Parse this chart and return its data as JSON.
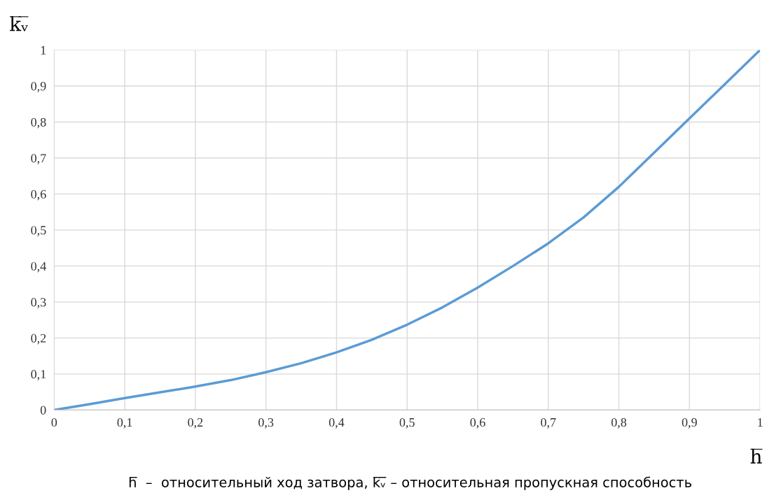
{
  "chart_data": {
    "type": "line",
    "ylabel": "k̅ᵥ̅",
    "xlabel": "h̅",
    "annotations": [
      "h̅  –  относительный ход затвора, k̅ᵥ̅ – относительная пропускная способность"
    ],
    "x": [
      0,
      0.05,
      0.1,
      0.15,
      0.2,
      0.25,
      0.3,
      0.35,
      0.4,
      0.45,
      0.5,
      0.55,
      0.6,
      0.65,
      0.7,
      0.75,
      0.8,
      0.85,
      0.9,
      0.95,
      1
    ],
    "series": [
      {
        "color": "#5b9bd5",
        "values": [
          0,
          0.016,
          0.033,
          0.049,
          0.065,
          0.083,
          0.105,
          0.13,
          0.16,
          0.195,
          0.237,
          0.285,
          0.34,
          0.4,
          0.463,
          0.535,
          0.62,
          0.715,
          0.81,
          0.905,
          1
        ]
      }
    ],
    "xlim": [
      0,
      1
    ],
    "ylim": [
      0,
      1
    ],
    "xticks": [
      0,
      {
        "value": 0.1,
        "label": "0,1"
      },
      {
        "value": 0.2,
        "label": "0,2"
      },
      {
        "value": 0.3,
        "label": "0,3"
      },
      {
        "value": 0.4,
        "label": "0,4"
      },
      {
        "value": 0.5,
        "label": "0,5"
      },
      {
        "value": 0.6,
        "label": "0,6"
      },
      {
        "value": 0.7,
        "label": "0,7"
      },
      {
        "value": 0.8,
        "label": "0,8"
      },
      {
        "value": 0.9,
        "label": "0,9"
      },
      1
    ],
    "yticks": [
      0,
      {
        "value": 0.1,
        "label": "0,1"
      },
      {
        "value": 0.2,
        "label": "0,2"
      },
      {
        "value": 0.3,
        "label": "0,3"
      },
      {
        "value": 0.4,
        "label": "0,4"
      },
      {
        "value": 0.5,
        "label": "0,5"
      },
      {
        "value": 0.6,
        "label": "0,6"
      },
      {
        "value": 0.7,
        "label": "0,7"
      },
      {
        "value": 0.8,
        "label": "0,8"
      },
      {
        "value": 0.9,
        "label": "0,9"
      },
      1
    ],
    "grid": true,
    "marker": "none",
    "line_style": "solid",
    "legend": false
  }
}
